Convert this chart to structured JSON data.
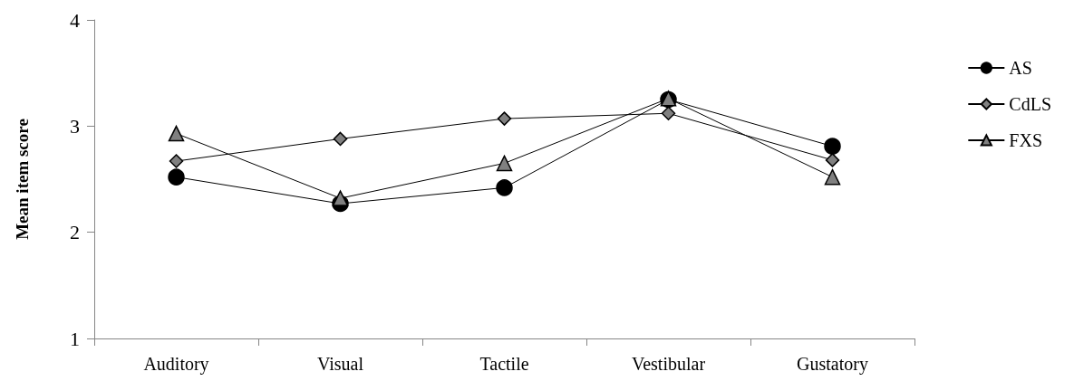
{
  "chart_data": {
    "type": "line",
    "ylabel": "Mean item score",
    "categories": [
      "Auditory",
      "Visual",
      "Tactile",
      "Vestibular",
      "Gustatory"
    ],
    "ylim": [
      1,
      4
    ],
    "yticks": [
      1,
      2,
      3,
      4
    ],
    "grid": false,
    "legend": "right",
    "series": [
      {
        "name": "AS",
        "color": "#000000",
        "marker": "circle",
        "values": [
          2.52,
          2.27,
          2.42,
          3.25,
          2.81
        ]
      },
      {
        "name": "CdLS",
        "color": "#808080",
        "marker": "diamond",
        "values": [
          2.67,
          2.88,
          3.07,
          3.12,
          2.68
        ]
      },
      {
        "name": "FXS",
        "color": "#808080",
        "marker": "triangle",
        "values": [
          2.93,
          2.32,
          2.65,
          3.26,
          2.52
        ]
      }
    ]
  }
}
